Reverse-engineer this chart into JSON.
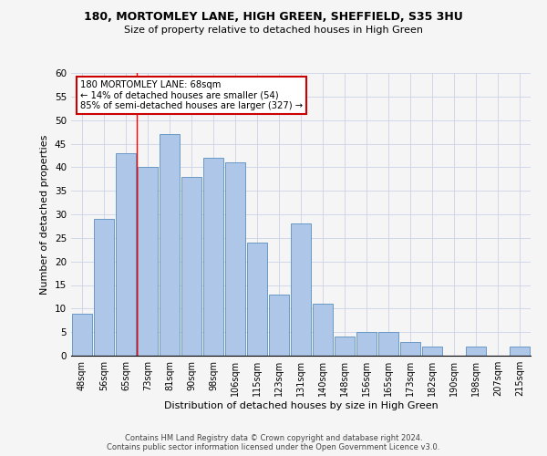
{
  "title": "180, MORTOMLEY LANE, HIGH GREEN, SHEFFIELD, S35 3HU",
  "subtitle": "Size of property relative to detached houses in High Green",
  "xlabel": "Distribution of detached houses by size in High Green",
  "ylabel": "Number of detached properties",
  "categories": [
    "48sqm",
    "56sqm",
    "65sqm",
    "73sqm",
    "81sqm",
    "90sqm",
    "98sqm",
    "106sqm",
    "115sqm",
    "123sqm",
    "131sqm",
    "140sqm",
    "148sqm",
    "156sqm",
    "165sqm",
    "173sqm",
    "182sqm",
    "190sqm",
    "198sqm",
    "207sqm",
    "215sqm"
  ],
  "values": [
    9,
    29,
    43,
    40,
    47,
    38,
    42,
    41,
    24,
    13,
    28,
    11,
    4,
    5,
    5,
    3,
    2,
    0,
    2,
    0,
    2
  ],
  "bar_color": "#aec6e8",
  "bar_edge_color": "#5a8fc0",
  "grid_color": "#d0d8e8",
  "annotation_text": "180 MORTOMLEY LANE: 68sqm\n← 14% of detached houses are smaller (54)\n85% of semi-detached houses are larger (327) →",
  "annotation_box_color": "#ffffff",
  "annotation_box_edge_color": "#cc0000",
  "red_line_x": 2.5,
  "ylim": [
    0,
    60
  ],
  "yticks": [
    0,
    5,
    10,
    15,
    20,
    25,
    30,
    35,
    40,
    45,
    50,
    55,
    60
  ],
  "footer_line1": "Contains HM Land Registry data © Crown copyright and database right 2024.",
  "footer_line2": "Contains public sector information licensed under the Open Government Licence v3.0.",
  "background_color": "#f5f5f5"
}
